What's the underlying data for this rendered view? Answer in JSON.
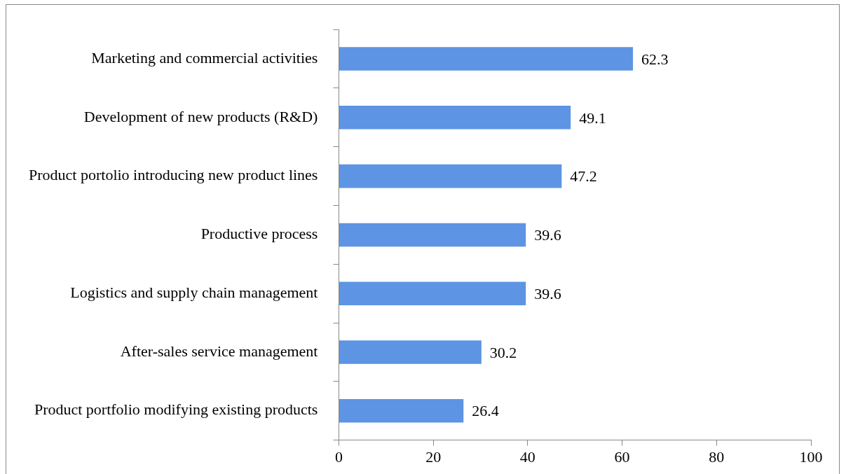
{
  "chart_data": {
    "type": "bar",
    "orientation": "horizontal",
    "categories": [
      "Marketing and commercial activities",
      "Development of new products (R&D)",
      "Product portolio introducing new product lines",
      "Productive process",
      "Logistics and supply chain management",
      "After-sales service management",
      "Product portfolio modifying existing products"
    ],
    "values": [
      62.3,
      49.1,
      47.2,
      39.6,
      39.6,
      30.2,
      26.4
    ],
    "color": "#5d94e3",
    "xlim": [
      0,
      100
    ],
    "xticks": [
      0,
      20,
      40,
      60,
      80,
      100
    ],
    "data_labels": true,
    "grid": false,
    "legend": false
  }
}
